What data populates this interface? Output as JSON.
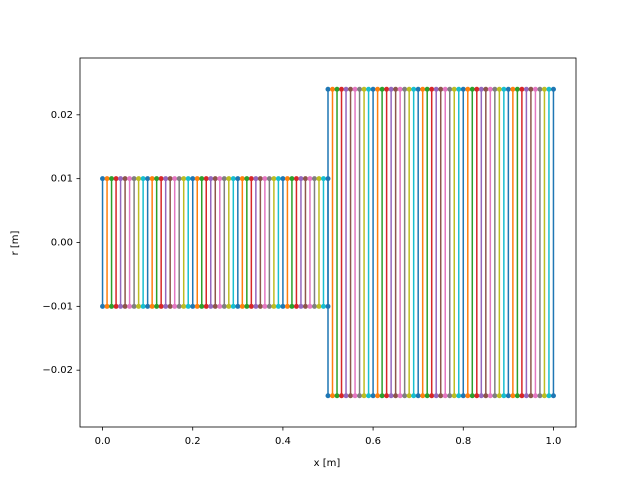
{
  "chart_data": {
    "type": "line",
    "x_label": "x [m]",
    "y_label": "r [m]",
    "xlim": [
      -0.05,
      1.05
    ],
    "ylim": [
      -0.0289,
      0.0289
    ],
    "xticks": [
      {
        "value": 0,
        "label": "0.0"
      },
      {
        "value": 0.2,
        "label": "0.2"
      },
      {
        "value": 0.4,
        "label": "0.4"
      },
      {
        "value": 0.6,
        "label": "0.6"
      },
      {
        "value": 0.8,
        "label": "0.8"
      },
      {
        "value": 1.0,
        "label": "1.0"
      }
    ],
    "yticks": [
      {
        "value": -0.02,
        "label": "−0.02"
      },
      {
        "value": -0.01,
        "label": "−0.01"
      },
      {
        "value": 0,
        "label": "0.00"
      },
      {
        "value": 0.01,
        "label": "0.01"
      },
      {
        "value": 0.02,
        "label": "0.02"
      }
    ],
    "series": [
      {
        "x": [
          0,
          0
        ],
        "values": [
          -0.01,
          0.01
        ],
        "color": "#1f77b4"
      },
      {
        "x": [
          0.01,
          0.01
        ],
        "values": [
          -0.01,
          0.01
        ],
        "color": "#ff7f0e"
      },
      {
        "x": [
          0.02,
          0.02
        ],
        "values": [
          -0.01,
          0.01
        ],
        "color": "#2ca02c"
      },
      {
        "x": [
          0.03,
          0.03
        ],
        "values": [
          -0.01,
          0.01
        ],
        "color": "#d62728"
      },
      {
        "x": [
          0.04,
          0.04
        ],
        "values": [
          -0.01,
          0.01
        ],
        "color": "#9467bd"
      },
      {
        "x": [
          0.05,
          0.05
        ],
        "values": [
          -0.01,
          0.01
        ],
        "color": "#8c564b"
      },
      {
        "x": [
          0.06,
          0.06
        ],
        "values": [
          -0.01,
          0.01
        ],
        "color": "#e377c2"
      },
      {
        "x": [
          0.07,
          0.07
        ],
        "values": [
          -0.01,
          0.01
        ],
        "color": "#7f7f7f"
      },
      {
        "x": [
          0.08,
          0.08
        ],
        "values": [
          -0.01,
          0.01
        ],
        "color": "#bcbd22"
      },
      {
        "x": [
          0.09,
          0.09
        ],
        "values": [
          -0.01,
          0.01
        ],
        "color": "#17becf"
      },
      {
        "x": [
          0.1,
          0.1
        ],
        "values": [
          -0.01,
          0.01
        ],
        "color": "#1f77b4"
      },
      {
        "x": [
          0.11,
          0.11
        ],
        "values": [
          -0.01,
          0.01
        ],
        "color": "#ff7f0e"
      },
      {
        "x": [
          0.12,
          0.12
        ],
        "values": [
          -0.01,
          0.01
        ],
        "color": "#2ca02c"
      },
      {
        "x": [
          0.13,
          0.13
        ],
        "values": [
          -0.01,
          0.01
        ],
        "color": "#d62728"
      },
      {
        "x": [
          0.14,
          0.14
        ],
        "values": [
          -0.01,
          0.01
        ],
        "color": "#9467bd"
      },
      {
        "x": [
          0.15,
          0.15
        ],
        "values": [
          -0.01,
          0.01
        ],
        "color": "#8c564b"
      },
      {
        "x": [
          0.16,
          0.16
        ],
        "values": [
          -0.01,
          0.01
        ],
        "color": "#e377c2"
      },
      {
        "x": [
          0.17,
          0.17
        ],
        "values": [
          -0.01,
          0.01
        ],
        "color": "#7f7f7f"
      },
      {
        "x": [
          0.18,
          0.18
        ],
        "values": [
          -0.01,
          0.01
        ],
        "color": "#bcbd22"
      },
      {
        "x": [
          0.19,
          0.19
        ],
        "values": [
          -0.01,
          0.01
        ],
        "color": "#17becf"
      },
      {
        "x": [
          0.2,
          0.2
        ],
        "values": [
          -0.01,
          0.01
        ],
        "color": "#1f77b4"
      },
      {
        "x": [
          0.21,
          0.21
        ],
        "values": [
          -0.01,
          0.01
        ],
        "color": "#ff7f0e"
      },
      {
        "x": [
          0.22,
          0.22
        ],
        "values": [
          -0.01,
          0.01
        ],
        "color": "#2ca02c"
      },
      {
        "x": [
          0.23,
          0.23
        ],
        "values": [
          -0.01,
          0.01
        ],
        "color": "#d62728"
      },
      {
        "x": [
          0.24,
          0.24
        ],
        "values": [
          -0.01,
          0.01
        ],
        "color": "#9467bd"
      },
      {
        "x": [
          0.25,
          0.25
        ],
        "values": [
          -0.01,
          0.01
        ],
        "color": "#8c564b"
      },
      {
        "x": [
          0.26,
          0.26
        ],
        "values": [
          -0.01,
          0.01
        ],
        "color": "#e377c2"
      },
      {
        "x": [
          0.27,
          0.27
        ],
        "values": [
          -0.01,
          0.01
        ],
        "color": "#7f7f7f"
      },
      {
        "x": [
          0.28,
          0.28
        ],
        "values": [
          -0.01,
          0.01
        ],
        "color": "#bcbd22"
      },
      {
        "x": [
          0.29,
          0.29
        ],
        "values": [
          -0.01,
          0.01
        ],
        "color": "#17becf"
      },
      {
        "x": [
          0.3,
          0.3
        ],
        "values": [
          -0.01,
          0.01
        ],
        "color": "#1f77b4"
      },
      {
        "x": [
          0.31,
          0.31
        ],
        "values": [
          -0.01,
          0.01
        ],
        "color": "#ff7f0e"
      },
      {
        "x": [
          0.32,
          0.32
        ],
        "values": [
          -0.01,
          0.01
        ],
        "color": "#2ca02c"
      },
      {
        "x": [
          0.33,
          0.33
        ],
        "values": [
          -0.01,
          0.01
        ],
        "color": "#d62728"
      },
      {
        "x": [
          0.34,
          0.34
        ],
        "values": [
          -0.01,
          0.01
        ],
        "color": "#9467bd"
      },
      {
        "x": [
          0.35,
          0.35
        ],
        "values": [
          -0.01,
          0.01
        ],
        "color": "#8c564b"
      },
      {
        "x": [
          0.36,
          0.36
        ],
        "values": [
          -0.01,
          0.01
        ],
        "color": "#e377c2"
      },
      {
        "x": [
          0.37,
          0.37
        ],
        "values": [
          -0.01,
          0.01
        ],
        "color": "#7f7f7f"
      },
      {
        "x": [
          0.38,
          0.38
        ],
        "values": [
          -0.01,
          0.01
        ],
        "color": "#bcbd22"
      },
      {
        "x": [
          0.39,
          0.39
        ],
        "values": [
          -0.01,
          0.01
        ],
        "color": "#17becf"
      },
      {
        "x": [
          0.4,
          0.4
        ],
        "values": [
          -0.01,
          0.01
        ],
        "color": "#1f77b4"
      },
      {
        "x": [
          0.41,
          0.41
        ],
        "values": [
          -0.01,
          0.01
        ],
        "color": "#ff7f0e"
      },
      {
        "x": [
          0.42,
          0.42
        ],
        "values": [
          -0.01,
          0.01
        ],
        "color": "#2ca02c"
      },
      {
        "x": [
          0.43,
          0.43
        ],
        "values": [
          -0.01,
          0.01
        ],
        "color": "#d62728"
      },
      {
        "x": [
          0.44,
          0.44
        ],
        "values": [
          -0.01,
          0.01
        ],
        "color": "#9467bd"
      },
      {
        "x": [
          0.45,
          0.45
        ],
        "values": [
          -0.01,
          0.01
        ],
        "color": "#8c564b"
      },
      {
        "x": [
          0.46,
          0.46
        ],
        "values": [
          -0.01,
          0.01
        ],
        "color": "#e377c2"
      },
      {
        "x": [
          0.47,
          0.47
        ],
        "values": [
          -0.01,
          0.01
        ],
        "color": "#7f7f7f"
      },
      {
        "x": [
          0.48,
          0.48
        ],
        "values": [
          -0.01,
          0.01
        ],
        "color": "#bcbd22"
      },
      {
        "x": [
          0.49,
          0.49
        ],
        "values": [
          -0.01,
          0.01
        ],
        "color": "#17becf"
      },
      {
        "x": [
          0.5,
          0.5
        ],
        "values": [
          -0.01,
          0.01
        ],
        "color": "#1f77b4"
      },
      {
        "x": [
          0.5,
          0.5
        ],
        "values": [
          -0.024,
          0.024
        ],
        "color": "#1f77b4"
      },
      {
        "x": [
          0.51,
          0.51
        ],
        "values": [
          -0.024,
          0.024
        ],
        "color": "#ff7f0e"
      },
      {
        "x": [
          0.52,
          0.52
        ],
        "values": [
          -0.024,
          0.024
        ],
        "color": "#2ca02c"
      },
      {
        "x": [
          0.53,
          0.53
        ],
        "values": [
          -0.024,
          0.024
        ],
        "color": "#d62728"
      },
      {
        "x": [
          0.54,
          0.54
        ],
        "values": [
          -0.024,
          0.024
        ],
        "color": "#9467bd"
      },
      {
        "x": [
          0.55,
          0.55
        ],
        "values": [
          -0.024,
          0.024
        ],
        "color": "#8c564b"
      },
      {
        "x": [
          0.56,
          0.56
        ],
        "values": [
          -0.024,
          0.024
        ],
        "color": "#e377c2"
      },
      {
        "x": [
          0.57,
          0.57
        ],
        "values": [
          -0.024,
          0.024
        ],
        "color": "#7f7f7f"
      },
      {
        "x": [
          0.58,
          0.58
        ],
        "values": [
          -0.024,
          0.024
        ],
        "color": "#bcbd22"
      },
      {
        "x": [
          0.59,
          0.59
        ],
        "values": [
          -0.024,
          0.024
        ],
        "color": "#17becf"
      },
      {
        "x": [
          0.6,
          0.6
        ],
        "values": [
          -0.024,
          0.024
        ],
        "color": "#1f77b4"
      },
      {
        "x": [
          0.61,
          0.61
        ],
        "values": [
          -0.024,
          0.024
        ],
        "color": "#ff7f0e"
      },
      {
        "x": [
          0.62,
          0.62
        ],
        "values": [
          -0.024,
          0.024
        ],
        "color": "#2ca02c"
      },
      {
        "x": [
          0.63,
          0.63
        ],
        "values": [
          -0.024,
          0.024
        ],
        "color": "#d62728"
      },
      {
        "x": [
          0.64,
          0.64
        ],
        "values": [
          -0.024,
          0.024
        ],
        "color": "#9467bd"
      },
      {
        "x": [
          0.65,
          0.65
        ],
        "values": [
          -0.024,
          0.024
        ],
        "color": "#8c564b"
      },
      {
        "x": [
          0.66,
          0.66
        ],
        "values": [
          -0.024,
          0.024
        ],
        "color": "#e377c2"
      },
      {
        "x": [
          0.67,
          0.67
        ],
        "values": [
          -0.024,
          0.024
        ],
        "color": "#7f7f7f"
      },
      {
        "x": [
          0.68,
          0.68
        ],
        "values": [
          -0.024,
          0.024
        ],
        "color": "#bcbd22"
      },
      {
        "x": [
          0.69,
          0.69
        ],
        "values": [
          -0.024,
          0.024
        ],
        "color": "#17becf"
      },
      {
        "x": [
          0.7,
          0.7
        ],
        "values": [
          -0.024,
          0.024
        ],
        "color": "#1f77b4"
      },
      {
        "x": [
          0.71,
          0.71
        ],
        "values": [
          -0.024,
          0.024
        ],
        "color": "#ff7f0e"
      },
      {
        "x": [
          0.72,
          0.72
        ],
        "values": [
          -0.024,
          0.024
        ],
        "color": "#2ca02c"
      },
      {
        "x": [
          0.73,
          0.73
        ],
        "values": [
          -0.024,
          0.024
        ],
        "color": "#d62728"
      },
      {
        "x": [
          0.74,
          0.74
        ],
        "values": [
          -0.024,
          0.024
        ],
        "color": "#9467bd"
      },
      {
        "x": [
          0.75,
          0.75
        ],
        "values": [
          -0.024,
          0.024
        ],
        "color": "#8c564b"
      },
      {
        "x": [
          0.76,
          0.76
        ],
        "values": [
          -0.024,
          0.024
        ],
        "color": "#e377c2"
      },
      {
        "x": [
          0.77,
          0.77
        ],
        "values": [
          -0.024,
          0.024
        ],
        "color": "#7f7f7f"
      },
      {
        "x": [
          0.78,
          0.78
        ],
        "values": [
          -0.024,
          0.024
        ],
        "color": "#bcbd22"
      },
      {
        "x": [
          0.79,
          0.79
        ],
        "values": [
          -0.024,
          0.024
        ],
        "color": "#17becf"
      },
      {
        "x": [
          0.8,
          0.8
        ],
        "values": [
          -0.024,
          0.024
        ],
        "color": "#1f77b4"
      },
      {
        "x": [
          0.81,
          0.81
        ],
        "values": [
          -0.024,
          0.024
        ],
        "color": "#ff7f0e"
      },
      {
        "x": [
          0.82,
          0.82
        ],
        "values": [
          -0.024,
          0.024
        ],
        "color": "#2ca02c"
      },
      {
        "x": [
          0.83,
          0.83
        ],
        "values": [
          -0.024,
          0.024
        ],
        "color": "#d62728"
      },
      {
        "x": [
          0.84,
          0.84
        ],
        "values": [
          -0.024,
          0.024
        ],
        "color": "#9467bd"
      },
      {
        "x": [
          0.85,
          0.85
        ],
        "values": [
          -0.024,
          0.024
        ],
        "color": "#8c564b"
      },
      {
        "x": [
          0.86,
          0.86
        ],
        "values": [
          -0.024,
          0.024
        ],
        "color": "#e377c2"
      },
      {
        "x": [
          0.87,
          0.87
        ],
        "values": [
          -0.024,
          0.024
        ],
        "color": "#7f7f7f"
      },
      {
        "x": [
          0.88,
          0.88
        ],
        "values": [
          -0.024,
          0.024
        ],
        "color": "#bcbd22"
      },
      {
        "x": [
          0.89,
          0.89
        ],
        "values": [
          -0.024,
          0.024
        ],
        "color": "#17becf"
      },
      {
        "x": [
          0.9,
          0.9
        ],
        "values": [
          -0.024,
          0.024
        ],
        "color": "#1f77b4"
      },
      {
        "x": [
          0.91,
          0.91
        ],
        "values": [
          -0.024,
          0.024
        ],
        "color": "#ff7f0e"
      },
      {
        "x": [
          0.92,
          0.92
        ],
        "values": [
          -0.024,
          0.024
        ],
        "color": "#2ca02c"
      },
      {
        "x": [
          0.93,
          0.93
        ],
        "values": [
          -0.024,
          0.024
        ],
        "color": "#d62728"
      },
      {
        "x": [
          0.94,
          0.94
        ],
        "values": [
          -0.024,
          0.024
        ],
        "color": "#9467bd"
      },
      {
        "x": [
          0.95,
          0.95
        ],
        "values": [
          -0.024,
          0.024
        ],
        "color": "#8c564b"
      },
      {
        "x": [
          0.96,
          0.96
        ],
        "values": [
          -0.024,
          0.024
        ],
        "color": "#e377c2"
      },
      {
        "x": [
          0.97,
          0.97
        ],
        "values": [
          -0.024,
          0.024
        ],
        "color": "#7f7f7f"
      },
      {
        "x": [
          0.98,
          0.98
        ],
        "values": [
          -0.024,
          0.024
        ],
        "color": "#bcbd22"
      },
      {
        "x": [
          0.99,
          0.99
        ],
        "values": [
          -0.024,
          0.024
        ],
        "color": "#17becf"
      },
      {
        "x": [
          1.0,
          1.0
        ],
        "values": [
          -0.024,
          0.024
        ],
        "color": "#1f77b4"
      }
    ]
  }
}
